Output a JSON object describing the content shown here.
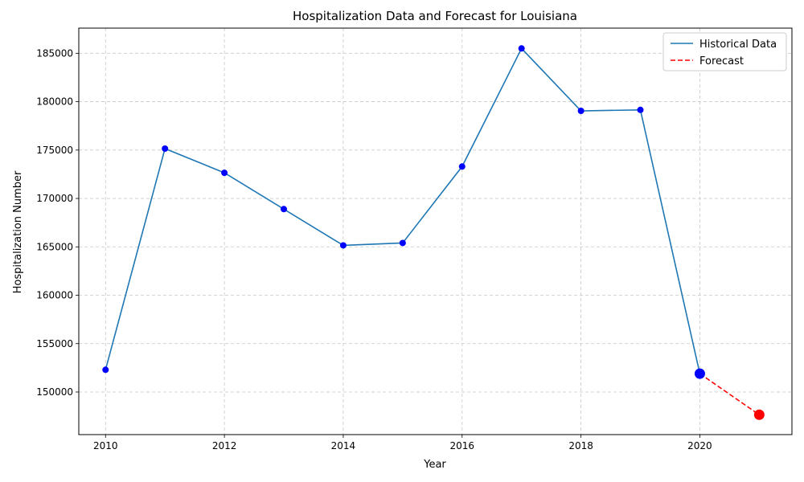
{
  "chart_data": {
    "type": "line",
    "title": "Hospitalization Data and Forecast for Louisiana",
    "xlabel": "Year",
    "ylabel": "Hospitalization Number",
    "xlim": [
      2009.55,
      2021.55
    ],
    "ylim": [
      145600,
      187600
    ],
    "x_ticks": [
      2010,
      2012,
      2014,
      2016,
      2018,
      2020
    ],
    "y_ticks": [
      150000,
      155000,
      160000,
      165000,
      170000,
      175000,
      180000,
      185000
    ],
    "grid": true,
    "legend_position": "top-right",
    "series": [
      {
        "name": "Historical Data",
        "style": "solid",
        "line_color": "#1f77b4",
        "marker_color": "#0000ff",
        "x": [
          2010,
          2011,
          2012,
          2013,
          2014,
          2015,
          2016,
          2017,
          2018,
          2019,
          2020
        ],
        "y": [
          152300,
          175150,
          172650,
          168900,
          165150,
          165400,
          173300,
          185500,
          179050,
          179150,
          151900
        ]
      },
      {
        "name": "Forecast",
        "style": "dashed",
        "line_color": "#ff0000",
        "marker_color": "#ff0000",
        "x": [
          2020,
          2021
        ],
        "y": [
          151900,
          147650
        ]
      }
    ],
    "highlight_points": [
      {
        "x": 2020,
        "y": 151900,
        "color": "#0000ff"
      },
      {
        "x": 2021,
        "y": 147650,
        "color": "#ff0000"
      }
    ]
  }
}
